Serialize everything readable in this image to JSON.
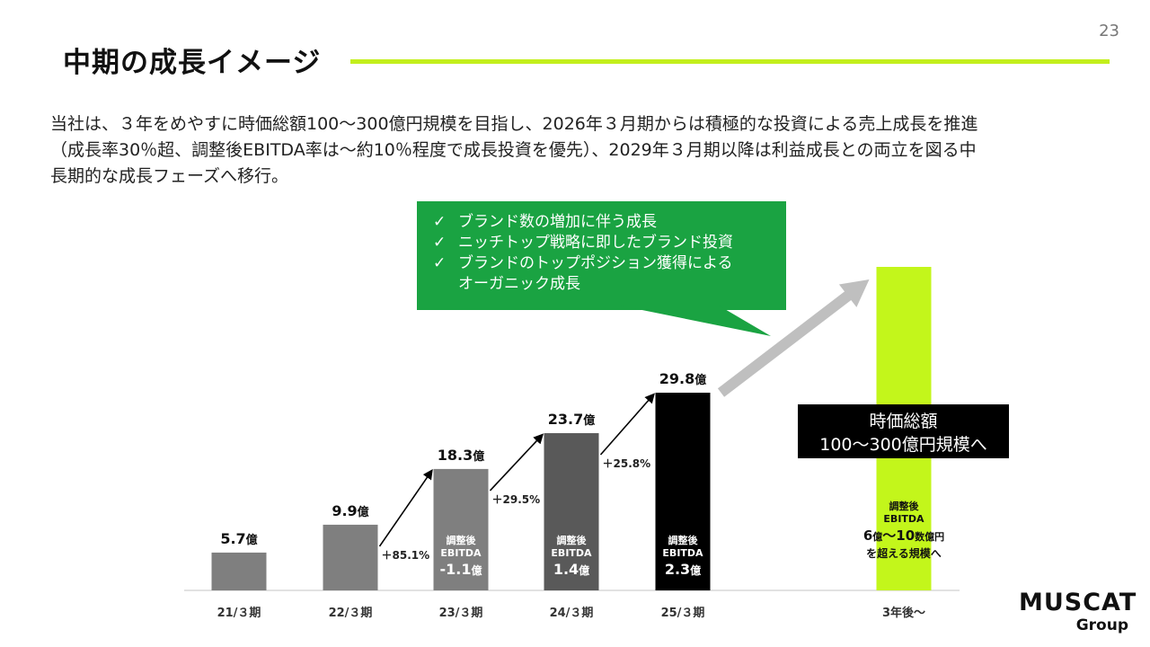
{
  "page": {
    "number": "23"
  },
  "header": {
    "title": "中期の成長イメージ",
    "accent_color": "#c3ef1d"
  },
  "intro": {
    "lines": [
      "当社は、３年をめやすに時価総額100～300億円規模を目指し、2026年３月期からは積極的な投資による売上成長を推進",
      "（成長率30％超、調整後EBITDA率は～約10％程度で成長投資を優先）、2029年３月期以降は利益成長との両立を図る中",
      "長期的な成長フェーズへ移行。"
    ]
  },
  "callout": {
    "bg_color": "#1aa342",
    "check": "✓",
    "items": [
      "ブランド数の増加に伴う成長",
      "ニッチトップ戦略に即したブランド投資",
      "ブランドのトップポジション獲得による"
    ],
    "continuation": "オーガニック成長"
  },
  "valuation": {
    "line1": "時価総額",
    "line2": "100～300億円規模へ"
  },
  "logo": {
    "main": "MUSCAT",
    "sub": "Group"
  },
  "chart_data": {
    "type": "bar",
    "categories": [
      "21/３期",
      "22/３期",
      "23/３期",
      "24/３期",
      "25/３期",
      "3年後～"
    ],
    "unit": "億",
    "values": [
      5.7,
      9.9,
      18.3,
      23.7,
      29.8,
      null
    ],
    "value_labels": [
      "5.7",
      "9.9",
      "18.3",
      "23.7",
      "29.8",
      ""
    ],
    "bar_colors": [
      "#7f7f7f",
      "#7f7f7f",
      "#7f7f7f",
      "#595959",
      "#000000",
      "#c3f61b"
    ],
    "growth_labels": [
      "＋85.1%",
      "＋29.5%",
      "＋25.8%"
    ],
    "ebitda": [
      null,
      null,
      {
        "label1": "調整後",
        "label2": "EBITDA",
        "value": "-1.1",
        "unit": "億"
      },
      {
        "label1": "調整後",
        "label2": "EBITDA",
        "value": "1.4",
        "unit": "億"
      },
      {
        "label1": "調整後",
        "label2": "EBITDA",
        "value": "2.3",
        "unit": "億"
      },
      null
    ],
    "target": {
      "label1": "調整後",
      "label2": "EBITDA",
      "value_from": "6",
      "unit_from": "億",
      "tilde": "〜",
      "value_to": "10",
      "unit_to": "数億円",
      "suffix": "を超える規模へ"
    },
    "ylim": [
      0,
      29.8
    ]
  }
}
